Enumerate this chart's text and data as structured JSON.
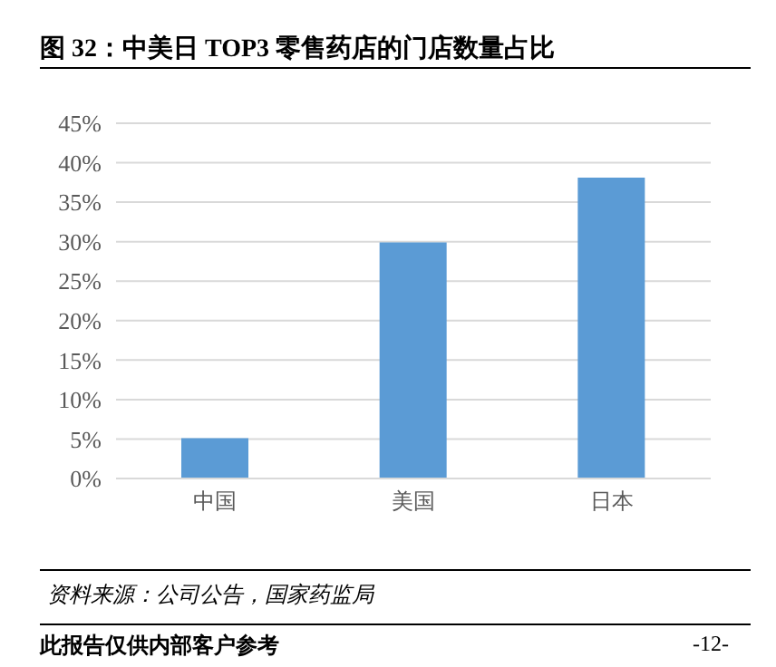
{
  "chart_data": {
    "type": "bar",
    "title": "图 32：中美日 TOP3 零售药店的门店数量占比",
    "categories": [
      "中国",
      "美国",
      "日本"
    ],
    "values": [
      5.1,
      29.9,
      38.1
    ],
    "color": "#5b9bd5",
    "ylim": [
      0,
      45
    ],
    "yticks": [
      {
        "value": 0,
        "label": "0%"
      },
      {
        "value": 5,
        "label": "5%"
      },
      {
        "value": 10,
        "label": "10%"
      },
      {
        "value": 15,
        "label": "15%"
      },
      {
        "value": 20,
        "label": "20%"
      },
      {
        "value": 25,
        "label": "25%"
      },
      {
        "value": 30,
        "label": "30%"
      },
      {
        "value": 35,
        "label": "35%"
      },
      {
        "value": 40,
        "label": "40%"
      },
      {
        "value": 45,
        "label": "45%"
      }
    ],
    "grid": "y",
    "annotations": [
      "资料来源：公司公告，国家药监局",
      "此报告仅供内部客户参考",
      "-12-"
    ]
  }
}
